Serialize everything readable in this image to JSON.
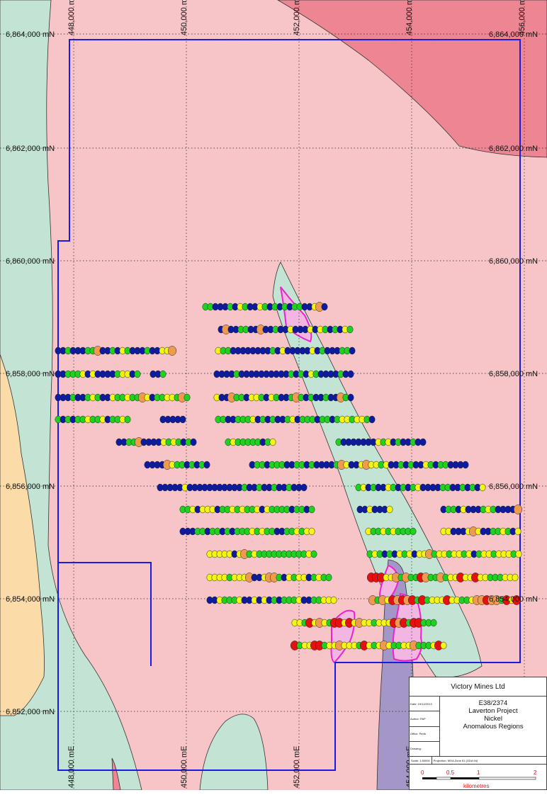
{
  "map": {
    "northing_labels": [
      "6,864,000 mN",
      "6,862,000 mN",
      "6,860,000 mN",
      "6,858,000 mN",
      "6,856,000 mN",
      "6,854,000 mN",
      "6,852,000 mN"
    ],
    "easting_labels": [
      "448,000 mE",
      "450,000 mE",
      "452,000 mE",
      "454,000 mE",
      "456,000 mE"
    ],
    "colors": {
      "granite": "#f7c4c8",
      "felsic_high": "#ee8592",
      "greenstone": "#c3e4d4",
      "sediment": "#fbdca8",
      "ultramafic": "#a596c8",
      "tenement_boundary": "#1a1ae0",
      "anomalous_region": "#ee22cc",
      "sample_low": "#0d1ba0",
      "sample_moderate": "#1fd21f",
      "sample_elevated": "#f5f514",
      "sample_high": "#ef9a4e",
      "sample_very_high": "#e61010"
    }
  },
  "title_block": {
    "company": "Victory Mines Ltd",
    "tenement": "E38/2374",
    "project": "Laverton Project",
    "commodity": "Nickel",
    "subject": "Anomalous Regions",
    "date": "Date: 19/12/2013",
    "author": "Author: PAP",
    "office": "Office: Perth",
    "drawing": "Drawing:",
    "scale": "Scale: 1:50000",
    "projection": "Projection: MGA Zone 51 (GDA 94)",
    "scale_ticks": [
      "0",
      "0.5",
      "1",
      "2"
    ],
    "scale_unit": "kilometres"
  }
}
